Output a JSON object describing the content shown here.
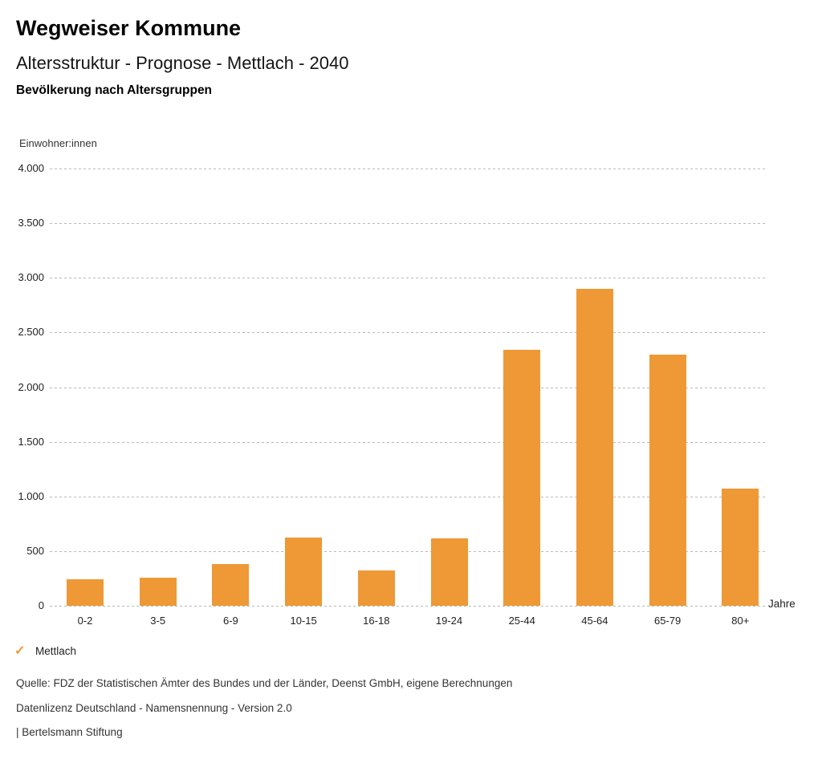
{
  "header": {
    "title": "Wegweiser Kommune",
    "subtitle": "Altersstruktur - Prognose - Mettlach - 2040",
    "caption": "Bevölkerung nach Altersgruppen"
  },
  "chart_data": {
    "type": "bar",
    "title": "Bevölkerung nach Altersgruppen",
    "ylabel": "Einwohner:innen",
    "xlabel": "Jahre",
    "categories": [
      "0-2",
      "3-5",
      "6-9",
      "10-15",
      "16-18",
      "19-24",
      "25-44",
      "45-64",
      "65-79",
      "80+"
    ],
    "values": [
      240,
      260,
      380,
      625,
      320,
      620,
      2340,
      2900,
      2300,
      1075
    ],
    "series_name": "Mettlach",
    "ylim": [
      0,
      4000
    ],
    "yticks": [
      {
        "value": 4000,
        "label": "4.000"
      },
      {
        "value": 3500,
        "label": "3.500"
      },
      {
        "value": 3000,
        "label": "3.000"
      },
      {
        "value": 2500,
        "label": "2.500"
      },
      {
        "value": 2000,
        "label": "2.000"
      },
      {
        "value": 1500,
        "label": "1.500"
      },
      {
        "value": 1000,
        "label": "1.000"
      },
      {
        "value": 500,
        "label": "500"
      },
      {
        "value": 0,
        "label": "0"
      }
    ],
    "grid": "horizontal-dotted",
    "legend_position": "bottom-left",
    "bar_color": "#EE9936",
    "gridline_color": "#b9b9b9"
  },
  "legend": {
    "items": [
      {
        "label": "Mettlach",
        "check_icon": "checkmark",
        "check_color": "#EE9936"
      }
    ]
  },
  "footer": {
    "source": "Quelle: FDZ der Statistischen Ämter des Bundes und der Länder, Deenst GmbH, eigene Berechnungen",
    "license": "Datenlizenz Deutschland - Namensnennung - Version 2.0",
    "attribution": "| Bertelsmann Stiftung"
  }
}
